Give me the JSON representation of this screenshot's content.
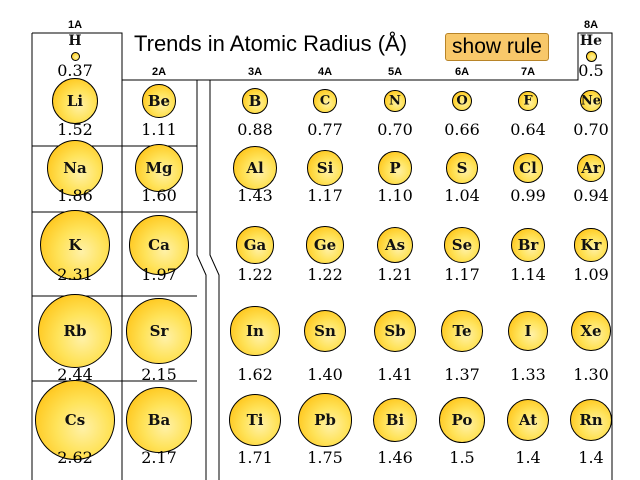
{
  "title": "Trends in Atomic Radius (Å)",
  "show_rule_label": "show rule",
  "group_labels": [
    {
      "id": "1A",
      "text": "1A"
    },
    {
      "id": "2A",
      "text": "2A"
    },
    {
      "id": "3A",
      "text": "3A"
    },
    {
      "id": "4A",
      "text": "4A"
    },
    {
      "id": "5A",
      "text": "5A"
    },
    {
      "id": "6A",
      "text": "6A"
    },
    {
      "id": "7A",
      "text": "7A"
    },
    {
      "id": "8A",
      "text": "8A"
    }
  ],
  "elements": [
    {
      "symbol": "H",
      "radius": "0.37",
      "group": "1A",
      "period": 1
    },
    {
      "symbol": "He",
      "radius": "0.5",
      "group": "8A",
      "period": 1
    },
    {
      "symbol": "Li",
      "radius": "1.52",
      "group": "1A",
      "period": 2
    },
    {
      "symbol": "Be",
      "radius": "1.11",
      "group": "2A",
      "period": 2
    },
    {
      "symbol": "B",
      "radius": "0.88",
      "group": "3A",
      "period": 2
    },
    {
      "symbol": "C",
      "radius": "0.77",
      "group": "4A",
      "period": 2
    },
    {
      "symbol": "N",
      "radius": "0.70",
      "group": "5A",
      "period": 2
    },
    {
      "symbol": "O",
      "radius": "0.66",
      "group": "6A",
      "period": 2
    },
    {
      "symbol": "F",
      "radius": "0.64",
      "group": "7A",
      "period": 2
    },
    {
      "symbol": "Ne",
      "radius": "0.70",
      "group": "8A",
      "period": 2
    },
    {
      "symbol": "Na",
      "radius": "1.86",
      "group": "1A",
      "period": 3
    },
    {
      "symbol": "Mg",
      "radius": "1.60",
      "group": "2A",
      "period": 3
    },
    {
      "symbol": "Al",
      "radius": "1.43",
      "group": "3A",
      "period": 3
    },
    {
      "symbol": "Si",
      "radius": "1.17",
      "group": "4A",
      "period": 3
    },
    {
      "symbol": "P",
      "radius": "1.10",
      "group": "5A",
      "period": 3
    },
    {
      "symbol": "S",
      "radius": "1.04",
      "group": "6A",
      "period": 3
    },
    {
      "symbol": "Cl",
      "radius": "0.99",
      "group": "7A",
      "period": 3
    },
    {
      "symbol": "Ar",
      "radius": "0.94",
      "group": "8A",
      "period": 3
    },
    {
      "symbol": "K",
      "radius": "2.31",
      "group": "1A",
      "period": 4
    },
    {
      "symbol": "Ca",
      "radius": "1.97",
      "group": "2A",
      "period": 4
    },
    {
      "symbol": "Ga",
      "radius": "1.22",
      "group": "3A",
      "period": 4
    },
    {
      "symbol": "Ge",
      "radius": "1.22",
      "group": "4A",
      "period": 4
    },
    {
      "symbol": "As",
      "radius": "1.21",
      "group": "5A",
      "period": 4
    },
    {
      "symbol": "Se",
      "radius": "1.17",
      "group": "6A",
      "period": 4
    },
    {
      "symbol": "Br",
      "radius": "1.14",
      "group": "7A",
      "period": 4
    },
    {
      "symbol": "Kr",
      "radius": "1.09",
      "group": "8A",
      "period": 4
    },
    {
      "symbol": "Rb",
      "radius": "2.44",
      "group": "1A",
      "period": 5
    },
    {
      "symbol": "Sr",
      "radius": "2.15",
      "group": "2A",
      "period": 5
    },
    {
      "symbol": "In",
      "radius": "1.62",
      "group": "3A",
      "period": 5
    },
    {
      "symbol": "Sn",
      "radius": "1.40",
      "group": "4A",
      "period": 5
    },
    {
      "symbol": "Sb",
      "radius": "1.41",
      "group": "5A",
      "period": 5
    },
    {
      "symbol": "Te",
      "radius": "1.37",
      "group": "6A",
      "period": 5
    },
    {
      "symbol": "I",
      "radius": "1.33",
      "group": "7A",
      "period": 5
    },
    {
      "symbol": "Xe",
      "radius": "1.30",
      "group": "8A",
      "period": 5
    },
    {
      "symbol": "Cs",
      "radius": "2.62",
      "group": "1A",
      "period": 6
    },
    {
      "symbol": "Ba",
      "radius": "2.17",
      "group": "2A",
      "period": 6
    },
    {
      "symbol": "Ti",
      "radius": "1.71",
      "group": "3A",
      "period": 6
    },
    {
      "symbol": "Pb",
      "radius": "1.75",
      "group": "4A",
      "period": 6
    },
    {
      "symbol": "Bi",
      "radius": "1.46",
      "group": "5A",
      "period": 6
    },
    {
      "symbol": "Po",
      "radius": "1.5",
      "group": "6A",
      "period": 6
    },
    {
      "symbol": "At",
      "radius": "1.4",
      "group": "7A",
      "period": 6
    },
    {
      "symbol": "Rn",
      "radius": "1.4",
      "group": "8A",
      "period": 6
    }
  ],
  "colors": {
    "ball_core": "#fff1a8",
    "ball_mid": "#ffcd2a",
    "ball_edge": "#f2a800",
    "button": "#f8c86a"
  }
}
